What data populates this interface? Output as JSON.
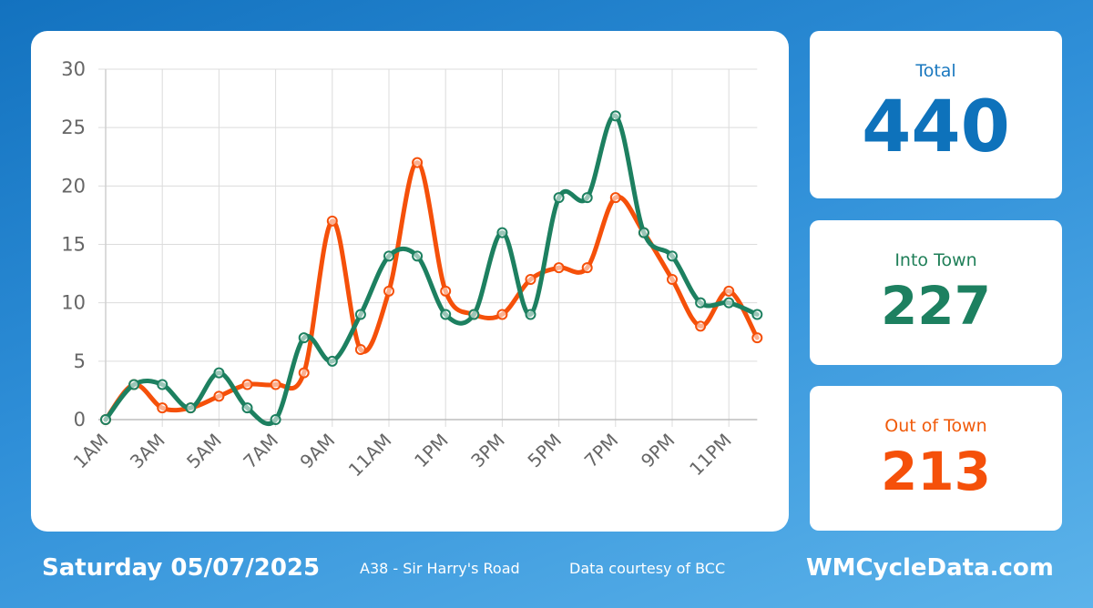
{
  "stats": {
    "total_label": "Total",
    "total_value": "440",
    "into_label": "Into Town",
    "into_value": "227",
    "out_label": "Out of Town",
    "out_value": "213"
  },
  "footer": {
    "date": "Saturday 05/07/2025",
    "location": "A38 - Sir Harry's Road",
    "credit": "Data courtesy of BCC",
    "brand": "WMCycleData.com"
  },
  "chart_data": {
    "type": "line",
    "x": [
      "1AM",
      "2AM",
      "3AM",
      "4AM",
      "5AM",
      "6AM",
      "7AM",
      "8AM",
      "9AM",
      "10AM",
      "11AM",
      "12PM",
      "1PM",
      "2PM",
      "3PM",
      "4PM",
      "5PM",
      "6PM",
      "7PM",
      "8PM",
      "9PM",
      "10PM",
      "11PM",
      "12AM"
    ],
    "x_tick_labels": [
      "1AM",
      "3AM",
      "5AM",
      "7AM",
      "9AM",
      "11AM",
      "1PM",
      "3PM",
      "5PM",
      "7PM",
      "9PM",
      "11PM"
    ],
    "ylim": [
      0,
      30
    ],
    "yticks": [
      0,
      5,
      10,
      15,
      20,
      25,
      30
    ],
    "grid": true,
    "series": [
      {
        "color": "#f5500a",
        "values": [
          0,
          3,
          1,
          1,
          2,
          3,
          3,
          4,
          17,
          6,
          11,
          22,
          11,
          9,
          9,
          12,
          13,
          13,
          19,
          16,
          12,
          8,
          11,
          7
        ]
      },
      {
        "color": "#1d8060",
        "values": [
          0,
          3,
          3,
          1,
          4,
          1,
          0,
          7,
          5,
          9,
          14,
          14,
          9,
          9,
          16,
          9,
          19,
          19,
          26,
          16,
          14,
          10,
          10,
          9
        ]
      }
    ]
  }
}
